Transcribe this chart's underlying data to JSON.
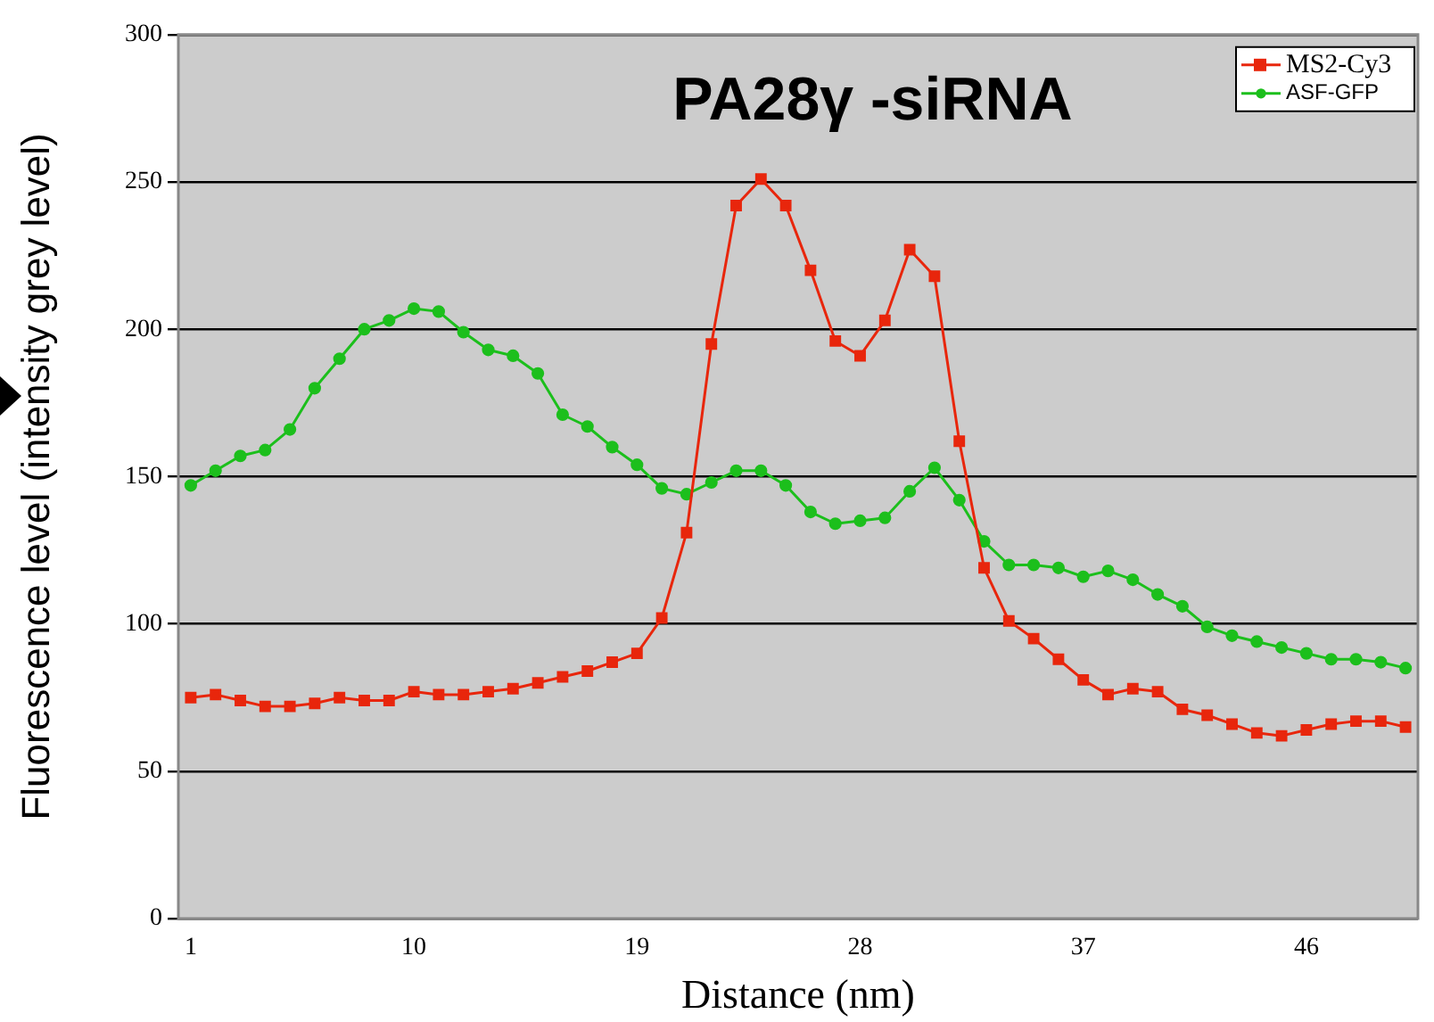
{
  "chart_data": {
    "type": "line",
    "title": "PA28γ -siRNA",
    "xlabel": "Distance (nm)",
    "ylabel": "Fluorescence level (intensity grey level)",
    "x": [
      1,
      2,
      3,
      4,
      5,
      6,
      7,
      8,
      9,
      10,
      11,
      12,
      13,
      14,
      15,
      16,
      17,
      18,
      19,
      20,
      21,
      22,
      23,
      24,
      25,
      26,
      27,
      28,
      29,
      30,
      31,
      32,
      33,
      34,
      35,
      36,
      37,
      38,
      39,
      40,
      41,
      42,
      43,
      44,
      45,
      46,
      47,
      48,
      49,
      50
    ],
    "xlim": [
      0.5,
      50.5
    ],
    "xticks": [
      1,
      10,
      19,
      28,
      37,
      46
    ],
    "ylim": [
      0,
      300
    ],
    "yticks": [
      0,
      50,
      100,
      150,
      200,
      250,
      300
    ],
    "grid": "y",
    "legend": "top right",
    "line_style": "solid",
    "series": [
      {
        "name": "MS2-Cy3",
        "color": "#e8260c",
        "marker": "square",
        "values": [
          75,
          76,
          74,
          72,
          72,
          73,
          75,
          74,
          74,
          77,
          76,
          76,
          77,
          78,
          80,
          82,
          84,
          87,
          90,
          102,
          131,
          195,
          242,
          251,
          242,
          220,
          196,
          191,
          203,
          227,
          218,
          162,
          119,
          101,
          95,
          88,
          81,
          76,
          78,
          77,
          71,
          69,
          66,
          63,
          62,
          64,
          66,
          67,
          67,
          65
        ]
      },
      {
        "name": "ASF-GFP",
        "color": "#1cbf1c",
        "marker": "circle",
        "values": [
          147,
          152,
          157,
          159,
          166,
          180,
          190,
          200,
          203,
          207,
          206,
          199,
          193,
          191,
          185,
          171,
          167,
          160,
          154,
          146,
          144,
          148,
          152,
          152,
          147,
          138,
          134,
          135,
          136,
          145,
          153,
          142,
          128,
          120,
          120,
          119,
          116,
          118,
          115,
          110,
          106,
          99,
          96,
          94,
          92,
          90,
          88,
          88,
          87,
          85
        ]
      }
    ]
  }
}
